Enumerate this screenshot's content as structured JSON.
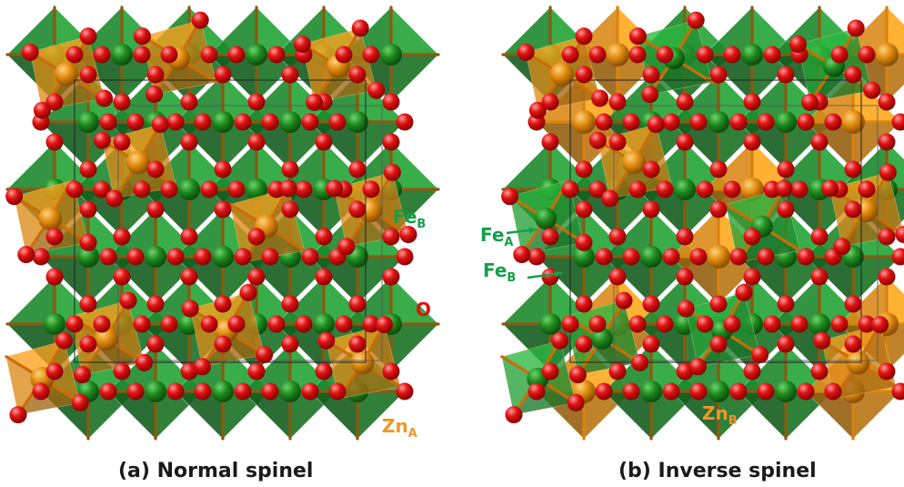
{
  "panels": [
    {
      "caption": "(a) Normal spinel",
      "labels": {
        "fe_b": {
          "main": "Fe",
          "sub": "B"
        },
        "o": {
          "main": "O"
        },
        "zn_a": {
          "main": "Zn",
          "sub": "A"
        }
      }
    },
    {
      "caption": "(b) Inverse spinel",
      "labels": {
        "fe_a": {
          "main": "Fe",
          "sub": "A"
        },
        "fe_b": {
          "main": "Fe",
          "sub": "B"
        },
        "zn_b": {
          "main": "Zn",
          "sub": "B"
        }
      }
    }
  ],
  "colors": {
    "fe": "#1f8f2e",
    "fe_light": "#27a83a",
    "zn": "#e6921a",
    "oxygen": "#e01010",
    "label_fe": "#12a04a",
    "label_o": "#e01010",
    "label_zn": "#f0962a"
  }
}
